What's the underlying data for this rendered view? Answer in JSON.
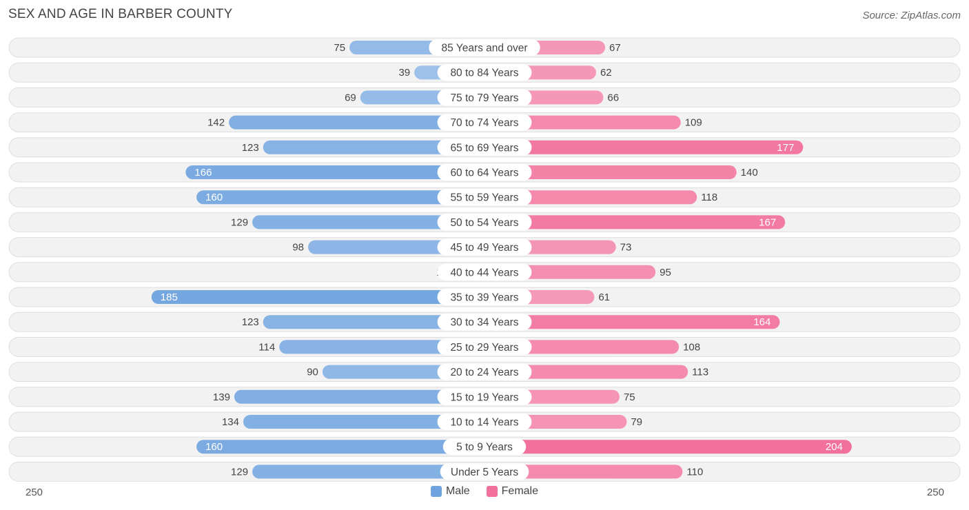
{
  "title": "SEX AND AGE IN BARBER COUNTY",
  "source": "Source: ZipAtlas.com",
  "colors": {
    "male": "#6fa3df",
    "male_light": "#a9c8ec",
    "female": "#f2719c",
    "female_light": "#f7a9c3",
    "row_bg": "#f2f2f2",
    "row_border": "#dedede"
  },
  "legend": {
    "male": "Male",
    "female": "Female"
  },
  "axis": {
    "left_label": "250",
    "right_label": "250"
  },
  "chart_data": {
    "type": "bar",
    "orientation": "horizontal-diverging",
    "categories": [
      "85 Years and over",
      "80 to 84 Years",
      "75 to 79 Years",
      "70 to 74 Years",
      "65 to 69 Years",
      "60 to 64 Years",
      "55 to 59 Years",
      "50 to 54 Years",
      "45 to 49 Years",
      "40 to 44 Years",
      "35 to 39 Years",
      "30 to 34 Years",
      "25 to 29 Years",
      "20 to 24 Years",
      "15 to 19 Years",
      "10 to 14 Years",
      "5 to 9 Years",
      "Under 5 Years"
    ],
    "series": [
      {
        "name": "Male",
        "values": [
          75,
          39,
          69,
          142,
          123,
          166,
          160,
          129,
          98,
          18,
          185,
          123,
          114,
          90,
          139,
          134,
          160,
          129
        ]
      },
      {
        "name": "Female",
        "values": [
          67,
          62,
          66,
          109,
          177,
          140,
          118,
          167,
          73,
          95,
          61,
          164,
          108,
          113,
          75,
          79,
          204,
          110
        ]
      }
    ],
    "xlim": [
      -250,
      250
    ],
    "legend_position": "bottom-center"
  }
}
